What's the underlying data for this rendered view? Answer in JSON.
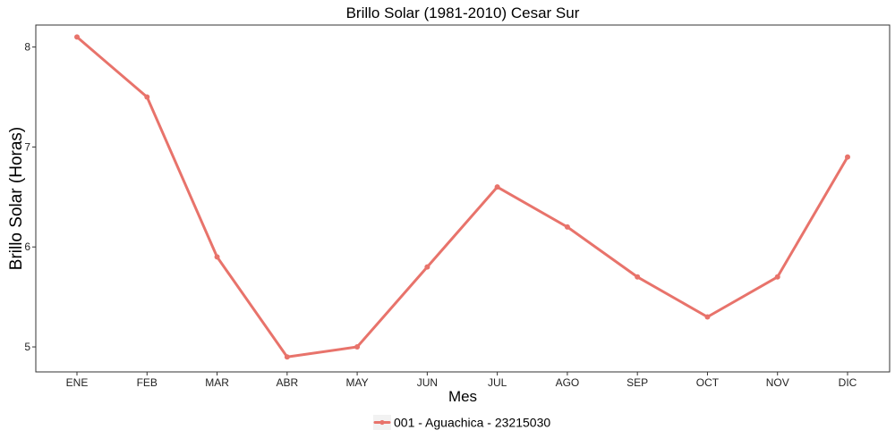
{
  "chart_data": {
    "type": "line",
    "title": "Brillo Solar (1981-2010)  Cesar Sur",
    "xlabel": "Mes",
    "ylabel": "Brillo Solar (Horas)",
    "categories": [
      "ENE",
      "FEB",
      "MAR",
      "ABR",
      "MAY",
      "JUN",
      "JUL",
      "AGO",
      "SEP",
      "OCT",
      "NOV",
      "DIC"
    ],
    "series": [
      {
        "name": "001 - Aguachica - 23215030",
        "color": "#E8736B",
        "values": [
          8.1,
          7.5,
          5.9,
          4.9,
          5.0,
          5.8,
          6.6,
          6.2,
          5.7,
          5.3,
          5.7,
          6.9
        ]
      }
    ],
    "yticks": [
      5,
      6,
      7,
      8
    ],
    "ylim": [
      4.75,
      8.22
    ],
    "grid": false,
    "legend_position": "bottom"
  }
}
